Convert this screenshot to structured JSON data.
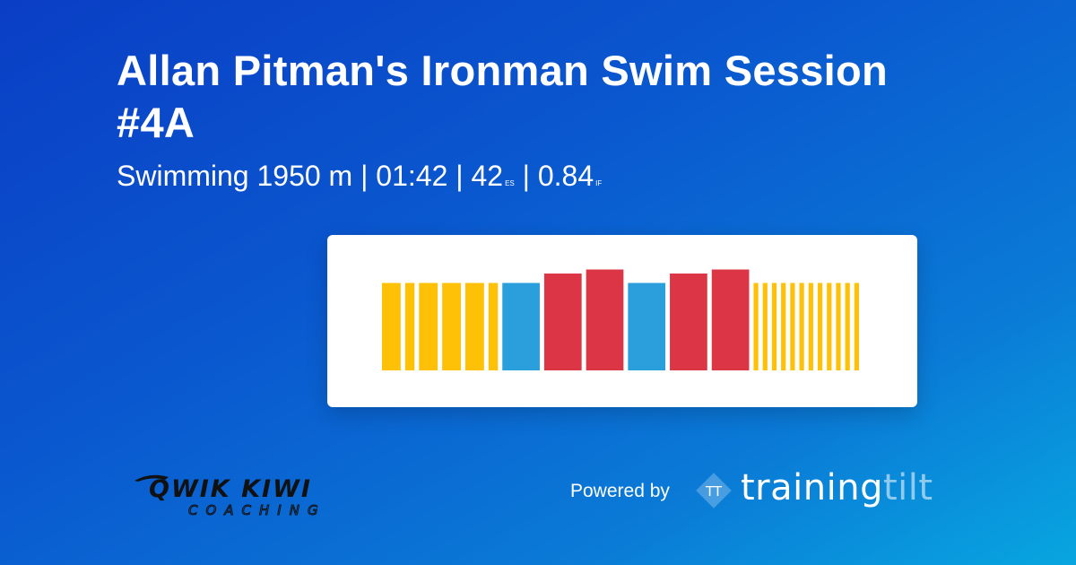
{
  "title": "Allan Pitman's Ironman Swim Session #4A",
  "subtitle": {
    "sport_distance": "Swimming 1950 m",
    "sep1": "|",
    "duration": "01:42",
    "sep2": "|",
    "es_value": "42",
    "es_unit": "ES",
    "sep3": "|",
    "if_value": "0.84",
    "if_unit": "IF"
  },
  "chart_data": {
    "type": "bar",
    "colors": {
      "warmup": "#ffc107",
      "moderate": "#2a9fdc",
      "hard": "#dc3545"
    },
    "note_units": "relative intensity 0-1",
    "blocks": [
      {
        "zone": "warmup",
        "duration": 1,
        "intensity": 0.55
      },
      {
        "zone": "warmup",
        "duration": 0.5,
        "intensity": 0.55
      },
      {
        "zone": "warmup",
        "duration": 1,
        "intensity": 0.55
      },
      {
        "zone": "warmup",
        "duration": 1,
        "intensity": 0.55
      },
      {
        "zone": "warmup",
        "duration": 1,
        "intensity": 0.55
      },
      {
        "zone": "warmup",
        "duration": 0.5,
        "intensity": 0.55
      },
      {
        "zone": "moderate",
        "duration": 2,
        "intensity": 0.55
      },
      {
        "zone": "hard",
        "duration": 2,
        "intensity": 0.62
      },
      {
        "zone": "hard",
        "duration": 2,
        "intensity": 0.65
      },
      {
        "zone": "moderate",
        "duration": 2,
        "intensity": 0.55
      },
      {
        "zone": "hard",
        "duration": 2,
        "intensity": 0.62
      },
      {
        "zone": "hard",
        "duration": 2,
        "intensity": 0.65
      },
      {
        "zone": "warmup",
        "duration": 0.25,
        "intensity": 0.55
      },
      {
        "zone": "warmup",
        "duration": 0.25,
        "intensity": 0.55
      },
      {
        "zone": "warmup",
        "duration": 0.25,
        "intensity": 0.55
      },
      {
        "zone": "warmup",
        "duration": 0.25,
        "intensity": 0.55
      },
      {
        "zone": "warmup",
        "duration": 0.25,
        "intensity": 0.55
      },
      {
        "zone": "warmup",
        "duration": 0.25,
        "intensity": 0.55
      },
      {
        "zone": "warmup",
        "duration": 0.25,
        "intensity": 0.55
      },
      {
        "zone": "warmup",
        "duration": 0.25,
        "intensity": 0.55
      },
      {
        "zone": "warmup",
        "duration": 0.25,
        "intensity": 0.55
      },
      {
        "zone": "warmup",
        "duration": 0.25,
        "intensity": 0.55
      },
      {
        "zone": "warmup",
        "duration": 0.25,
        "intensity": 0.55
      },
      {
        "zone": "warmup",
        "duration": 0.25,
        "intensity": 0.55
      }
    ]
  },
  "footer": {
    "brand_left": "QWIK KIWI",
    "brand_left_sub": "COACHING",
    "powered_by": "Powered by",
    "badge": "TT",
    "brand_right_main": "training",
    "brand_right_faded": "tilt"
  }
}
